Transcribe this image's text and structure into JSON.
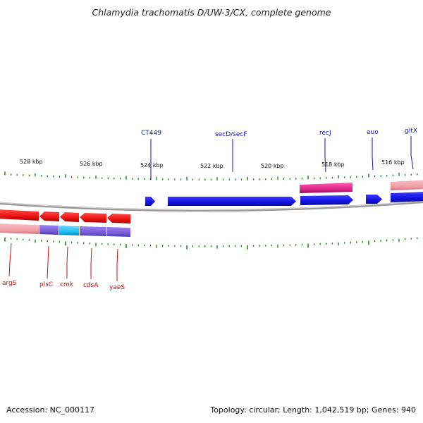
{
  "title": "Chlamydia trachomatis D/UW-3/CX, complete genome",
  "footer": {
    "accession": "Accession: NC_000117",
    "summary": "Topology: circular; Length: 1,042,519 bp; Genes: 940"
  },
  "colors": {
    "forward_gene": "#1a1ae6",
    "reverse_gene": "#ee1111",
    "recj_gene": "#e0288a",
    "tick": "#2a8a2a",
    "backbone": "#888888",
    "top_label": "#1515b0",
    "bottom_label": "#c81414",
    "reverse_band_pink": "#f0a0a8",
    "reverse_band_purple": "#7a5fd6",
    "reverse_band_cyan": "#18b8ef"
  },
  "scale_labels": [
    "528 kbp",
    "526 kbp",
    "524 kbp",
    "522 kbp",
    "520 kbp",
    "518 kbp",
    "516 kbp"
  ],
  "top_gene_labels": [
    "CT449",
    "secD/secF",
    "recJ",
    "euo",
    "gltX"
  ],
  "bottom_gene_labels": [
    "argS",
    "plsC",
    "cmk",
    "cdsA",
    "yaeS"
  ]
}
